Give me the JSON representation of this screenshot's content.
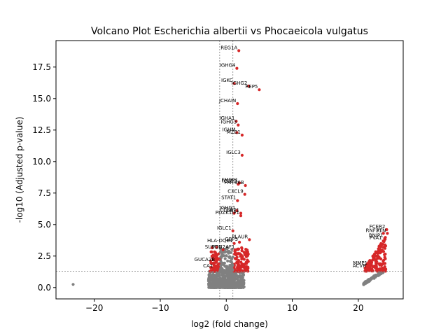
{
  "chart_data": {
    "type": "scatter",
    "title": "Volcano Plot Escherichia albertii vs Phocaeicola vulgatus",
    "xlabel": "log2 (fold change)",
    "ylabel": "-log10 (Adjusted p-value)",
    "xlim": [
      -25.8,
      26.8
    ],
    "ylim": [
      -0.9,
      19.6
    ],
    "xticks": [
      -20,
      -10,
      0,
      10,
      20
    ],
    "xtick_labels": [
      "−20",
      "−10",
      "0",
      "10",
      "20"
    ],
    "yticks": [
      0.0,
      2.5,
      5.0,
      7.5,
      10.0,
      12.5,
      15.0,
      17.5
    ],
    "ytick_labels": [
      "0.0",
      "2.5",
      "5.0",
      "7.5",
      "10.0",
      "12.5",
      "15.0",
      "17.5"
    ],
    "threshold_lines": {
      "log2fc": [
        -1,
        1
      ],
      "neg_log10_padj": 1.3
    },
    "grid": false,
    "legend": false,
    "colors": {
      "significant": "#d62728",
      "not_significant": "#808080",
      "threshold_line": "#808080"
    },
    "labeled_points": [
      {
        "gene": "REG1A",
        "x": 1.9,
        "y": 18.8
      },
      {
        "gene": "IGHG4",
        "x": 1.6,
        "y": 17.4
      },
      {
        "gene": "IGKC",
        "x": 1.2,
        "y": 16.2
      },
      {
        "gene": "IGHG2",
        "x": 3.4,
        "y": 16.0
      },
      {
        "gene": "REP5",
        "x": 5.0,
        "y": 15.7
      },
      {
        "gene": "JCHAIN",
        "x": 1.7,
        "y": 14.6
      },
      {
        "gene": "IGHA1",
        "x": 1.5,
        "y": 13.2
      },
      {
        "gene": "IGHG3",
        "x": 1.8,
        "y": 12.9
      },
      {
        "gene": "IGHM",
        "x": 1.6,
        "y": 12.3
      },
      {
        "gene": "MZB1",
        "x": 2.4,
        "y": 12.1
      },
      {
        "gene": "IGLC3",
        "x": 2.4,
        "y": 10.5
      },
      {
        "gene": "FMBP1",
        "x": 2.0,
        "y": 8.3
      },
      {
        "gene": "IGLC2",
        "x": 1.8,
        "y": 8.2
      },
      {
        "gene": "FMT36B",
        "x": 2.9,
        "y": 8.1
      },
      {
        "gene": "CXCL9",
        "x": 2.8,
        "y": 7.4
      },
      {
        "gene": "STAT1",
        "x": 1.7,
        "y": 6.9
      },
      {
        "gene": "IGHG1",
        "x": 1.6,
        "y": 6.1
      },
      {
        "gene": "CCL4",
        "x": 1.2,
        "y": 5.9
      },
      {
        "gene": "GBP1",
        "x": 2.2,
        "y": 5.9
      },
      {
        "gene": "PDZK1IP1",
        "x": 2.2,
        "y": 5.7
      },
      {
        "gene": "IGLC1",
        "x": 1.0,
        "y": 4.5
      },
      {
        "gene": "PLAUR",
        "x": 3.5,
        "y": 3.8
      },
      {
        "gene": "GBP5",
        "x": 2.0,
        "y": 3.6
      },
      {
        "gene": "HLA-DQB1",
        "x": 1.2,
        "y": 3.5
      },
      {
        "gene": "SUSD2",
        "x": -0.5,
        "y": 3.0
      },
      {
        "gene": "POU2AF1",
        "x": 1.5,
        "y": 3.0
      },
      {
        "gene": "GUCA2B",
        "x": -1.5,
        "y": 2.0
      },
      {
        "gene": "CA1",
        "x": -1.8,
        "y": 1.5
      },
      {
        "gene": "FCER2",
        "x": 24.3,
        "y": 4.6
      },
      {
        "gene": "RNF31",
        "x": 23.8,
        "y": 4.3
      },
      {
        "gene": "PTN",
        "x": 24.4,
        "y": 4.3
      },
      {
        "gene": "BNIP1",
        "x": 24.0,
        "y": 3.9
      },
      {
        "gene": "PVA1",
        "x": 23.8,
        "y": 3.7
      },
      {
        "gene": "MMP1",
        "x": 21.6,
        "y": 1.7
      },
      {
        "gene": "ACVR",
        "x": 21.4,
        "y": 1.5
      }
    ],
    "outlier_points": [
      {
        "x": -23.2,
        "y": 0.25
      }
    ]
  }
}
